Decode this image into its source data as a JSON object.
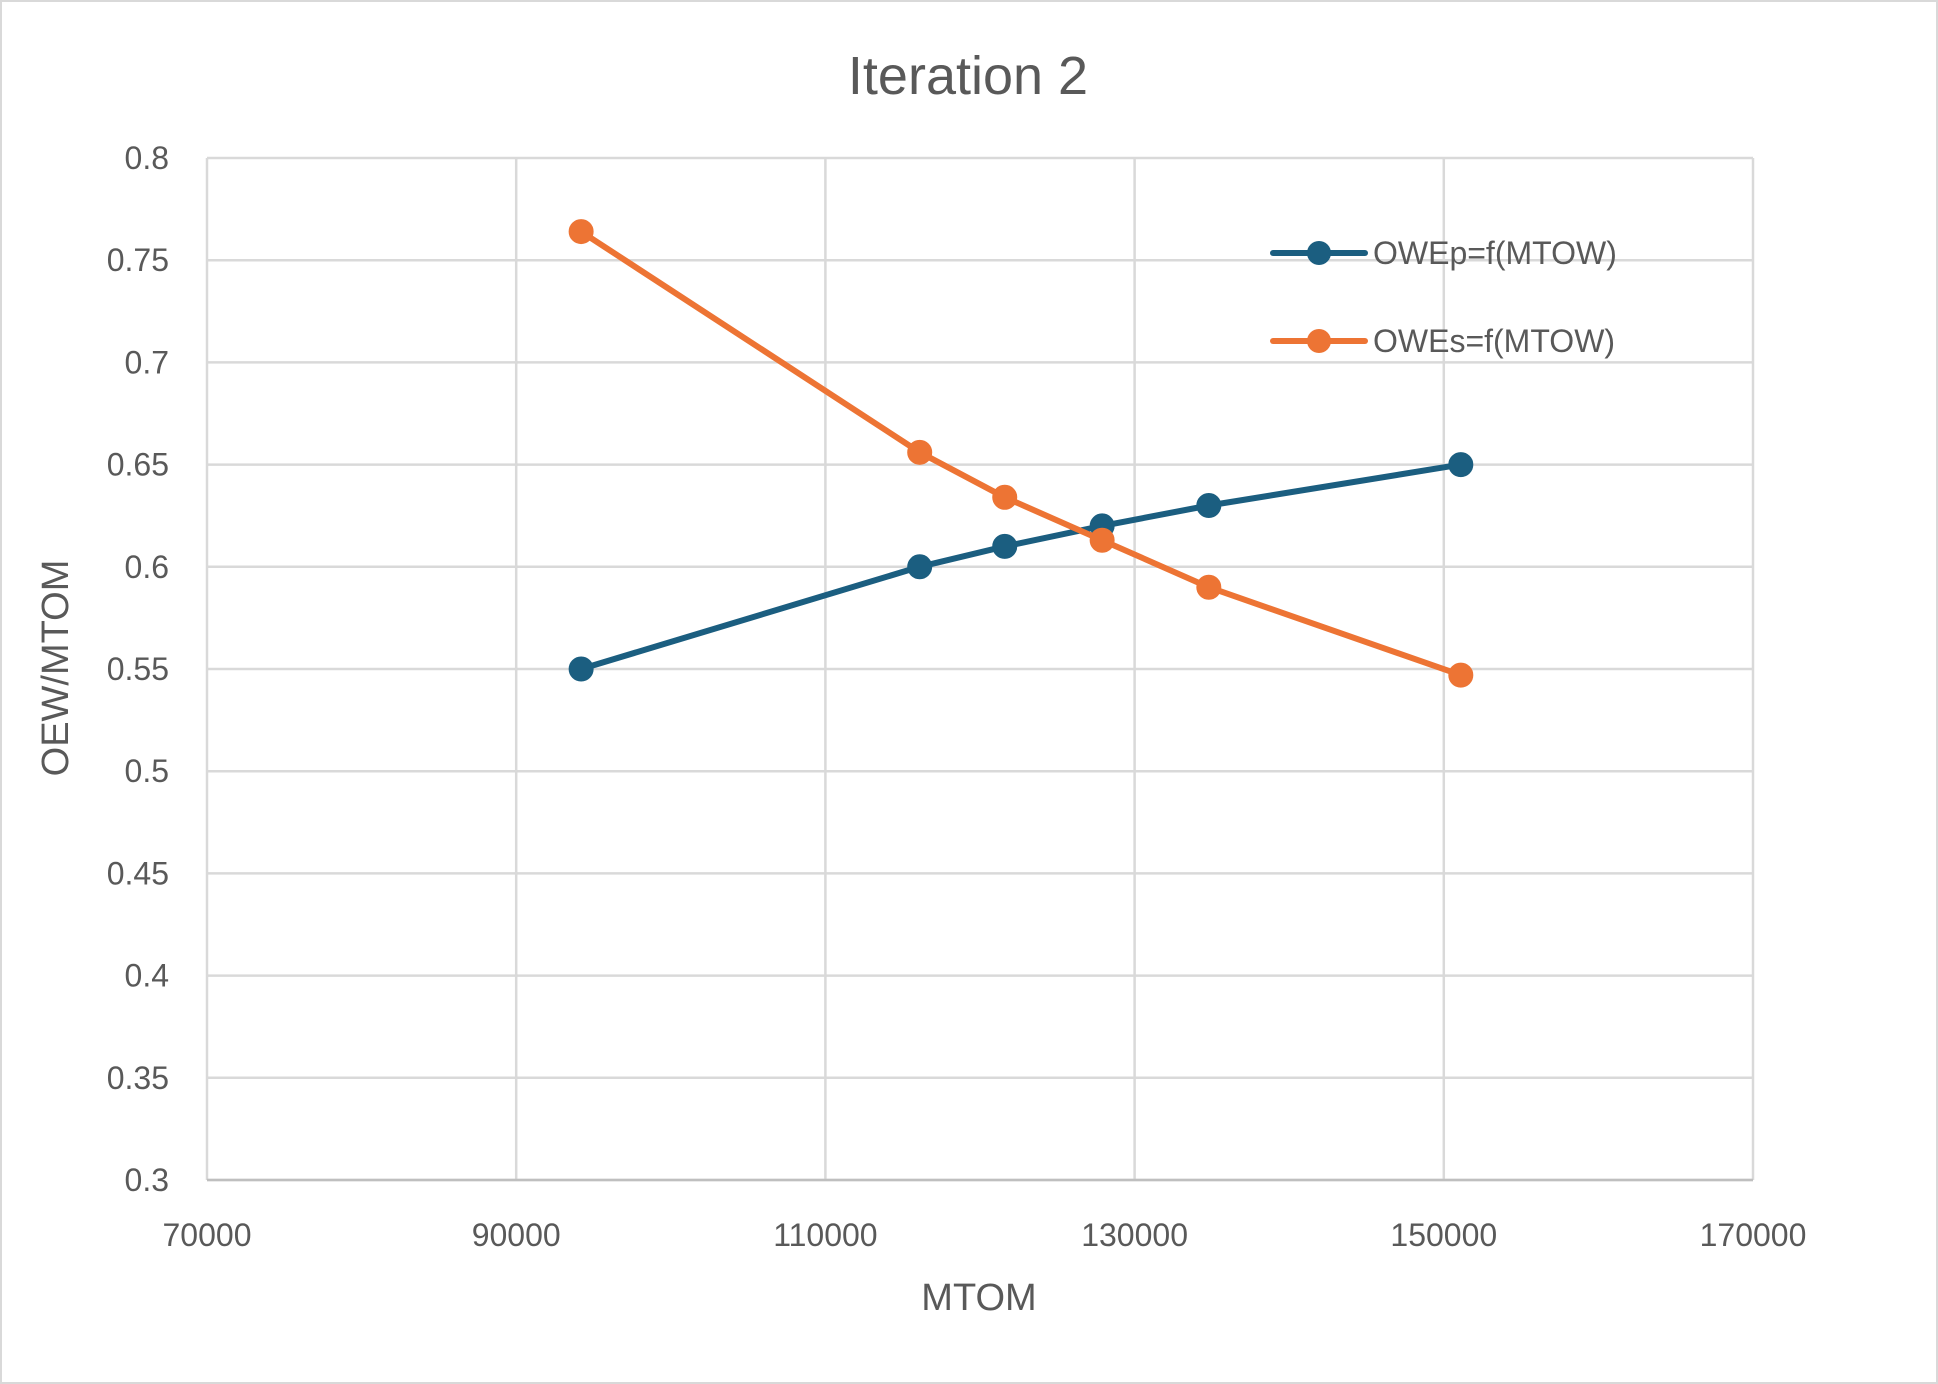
{
  "chart_data": {
    "type": "line",
    "title": "Iteration 2",
    "xlabel": "MTOM",
    "ylabel": "OEW/MTOM",
    "xlim": [
      70000,
      170000
    ],
    "ylim": [
      0.3,
      0.8
    ],
    "xticks": [
      "70000",
      "90000",
      "110000",
      "130000",
      "150000",
      "170000"
    ],
    "yticks": [
      "0.3",
      "0.35",
      "0.4",
      "0.45",
      "0.5",
      "0.55",
      "0.6",
      "0.65",
      "0.7",
      "0.75",
      "0.8"
    ],
    "grid": true,
    "legend_position": "top-right",
    "series": [
      {
        "name": "OWEp=f(MTOW)",
        "color": "#1b5e80",
        "x": [
          94200,
          116100,
          121600,
          127900,
          134800,
          151100
        ],
        "y": [
          0.55,
          0.6,
          0.61,
          0.62,
          0.63,
          0.65
        ]
      },
      {
        "name": "OWEs=f(MTOW)",
        "color": "#ed7434",
        "x": [
          94200,
          116100,
          121600,
          127900,
          134800,
          151100
        ],
        "y": [
          0.764,
          0.656,
          0.634,
          0.613,
          0.59,
          0.547
        ]
      }
    ]
  }
}
